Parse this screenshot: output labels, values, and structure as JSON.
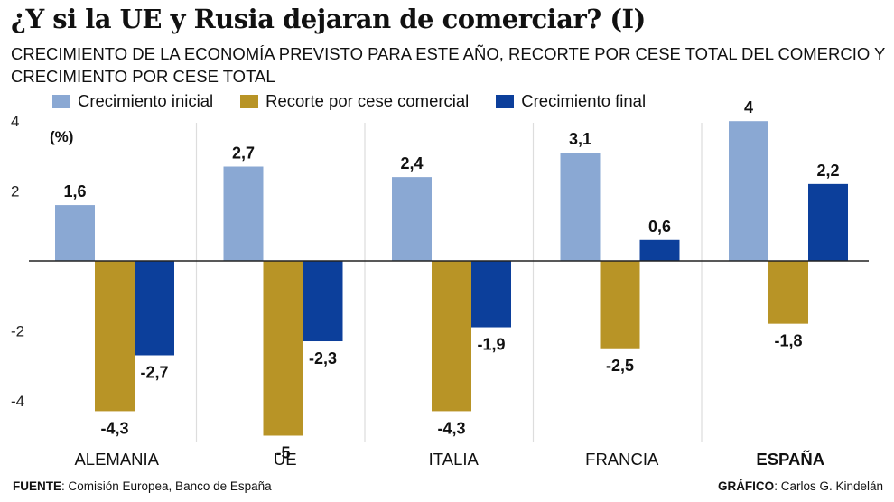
{
  "header": {
    "title": "¿Y si la UE y Rusia dejaran de comerciar? (I)",
    "subtitle": "CRECIMIENTO DE LA ECONOMÍA PREVISTO PARA ESTE AÑO, RECORTE POR CESE TOTAL DEL COMERCIO Y CRECIMIENTO POR CESE TOTAL"
  },
  "colors": {
    "crecimiento_inicial": "#8aa8d3",
    "recorte": "#b89426",
    "crecimiento_final": "#0c3f9b",
    "axis": "#222222",
    "divider": "#dddddd"
  },
  "footer": {
    "source_label": "FUENTE",
    "source_text": ": Comisión Europea, Banco de España",
    "credit_label": "GRÁFICO",
    "credit_text": ": Carlos G. Kindelán"
  },
  "chart_data": {
    "type": "bar",
    "title": "¿Y si la UE y Rusia dejaran de comerciar? (I)",
    "subtitle": "CRECIMIENTO DE LA ECONOMÍA PREVISTO PARA ESTE AÑO, RECORTE POR CESE TOTAL DEL COMERCIO Y CRECIMIENTO POR CESE TOTAL",
    "unit_label": "(%)",
    "xlabel": "",
    "ylabel": "(%)",
    "ylim": [
      -5,
      4
    ],
    "yticks": [
      4,
      2,
      -2,
      -4
    ],
    "ytick_labels": [
      "4",
      "2",
      "-2",
      "-4"
    ],
    "grid": false,
    "legend_position": "top-left",
    "categories": [
      "ALEMANIA",
      "UE",
      "ITALIA",
      "FRANCIA",
      "ESPAÑA"
    ],
    "highlight_category": "ESPAÑA",
    "series": [
      {
        "name": "Crecimiento inicial",
        "color": "#8aa8d3",
        "values": [
          1.6,
          2.7,
          2.4,
          3.1,
          4
        ],
        "labels": [
          "1,6",
          "2,7",
          "2,4",
          "3,1",
          "4"
        ]
      },
      {
        "name": "Recorte por cese comercial",
        "color": "#b89426",
        "values": [
          -4.3,
          -5,
          -4.3,
          -2.5,
          -1.8
        ],
        "labels": [
          "-4,3",
          "-5",
          "-4,3",
          "-2,5",
          "-1,8"
        ]
      },
      {
        "name": "Crecimiento final",
        "color": "#0c3f9b",
        "values": [
          -2.7,
          -2.3,
          -1.9,
          0.6,
          2.2
        ],
        "labels": [
          "-2,7",
          "-2,3",
          "-1,9",
          "0,6",
          "2,2"
        ]
      }
    ]
  }
}
